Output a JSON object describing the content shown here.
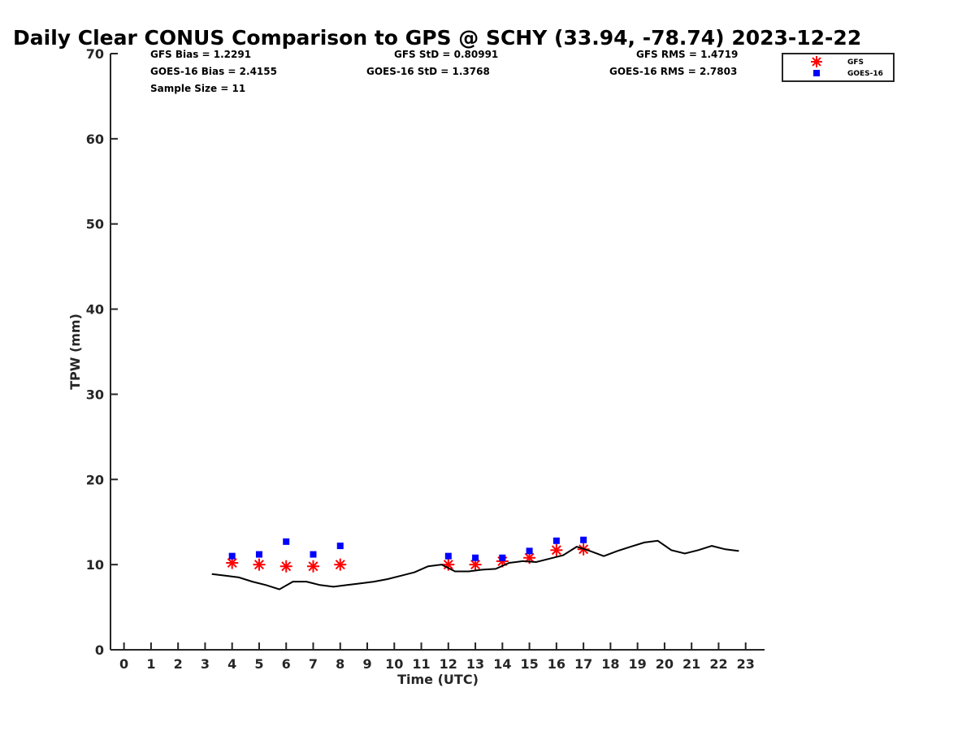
{
  "chart_data": {
    "type": "scatter",
    "title": "Daily Clear CONUS Comparison to GPS @ SCHY (33.94, -78.74) 2023-12-22",
    "xlabel": "Time (UTC)",
    "ylabel": "TPW (mm)",
    "xlim": [
      -0.5,
      23.7
    ],
    "ylim": [
      0,
      70
    ],
    "x_ticks": [
      0,
      1,
      2,
      3,
      4,
      5,
      6,
      7,
      8,
      9,
      10,
      11,
      12,
      13,
      14,
      15,
      16,
      17,
      18,
      19,
      20,
      21,
      22,
      23
    ],
    "y_ticks": [
      0,
      10,
      20,
      30,
      40,
      50,
      60,
      70
    ],
    "grid": false,
    "legend_position": "top-right",
    "stats": {
      "gfs_bias": "GFS Bias = 1.2291",
      "gfs_std": "GFS StD = 0.80991",
      "gfs_rms": "GFS RMS = 1.4719",
      "goes_bias": "GOES-16 Bias = 2.4155",
      "goes_std": "GOES-16 StD = 1.3768",
      "goes_rms": "GOES-16 RMS = 2.7803",
      "sample_size": "Sample Size = 11"
    },
    "series": [
      {
        "name": "GFS",
        "marker": "asterisk",
        "color": "#ff0000",
        "x": [
          4,
          5,
          6,
          7,
          8,
          12,
          13,
          14,
          15,
          16,
          17
        ],
        "y": [
          10.2,
          10.0,
          9.8,
          9.8,
          10.0,
          10.0,
          10.0,
          10.4,
          10.8,
          11.7,
          11.8
        ]
      },
      {
        "name": "GOES-16",
        "marker": "square",
        "color": "#0000ff",
        "x": [
          4,
          5,
          6,
          7,
          8,
          12,
          13,
          14,
          15,
          16,
          17
        ],
        "y": [
          11.0,
          11.2,
          12.7,
          11.2,
          12.2,
          11.0,
          10.8,
          10.8,
          11.6,
          12.8,
          12.9
        ]
      },
      {
        "marker": "line",
        "color": "#000000",
        "x": [
          3.25,
          3.75,
          4.25,
          4.75,
          5.25,
          5.75,
          6.25,
          6.75,
          7.25,
          7.75,
          8.25,
          8.75,
          9.25,
          9.75,
          10.25,
          10.75,
          11.25,
          11.75,
          12.25,
          12.75,
          13.25,
          13.75,
          14.25,
          14.75,
          15.25,
          15.75,
          16.25,
          16.75,
          17.25,
          17.75,
          18.25,
          18.75,
          19.25,
          19.75,
          20.25,
          20.75,
          21.25,
          21.75,
          22.25,
          22.75
        ],
        "y": [
          8.9,
          8.7,
          8.5,
          8.0,
          7.6,
          7.1,
          8.0,
          8.0,
          7.6,
          7.4,
          7.6,
          7.8,
          8.0,
          8.3,
          8.7,
          9.1,
          9.8,
          10.0,
          9.2,
          9.2,
          9.4,
          9.5,
          10.2,
          10.4,
          10.3,
          10.7,
          11.1,
          12.1,
          11.6,
          11.0,
          11.6,
          12.1,
          12.6,
          12.8,
          11.7,
          11.3,
          11.7,
          12.2,
          11.8,
          11.6
        ]
      }
    ]
  }
}
